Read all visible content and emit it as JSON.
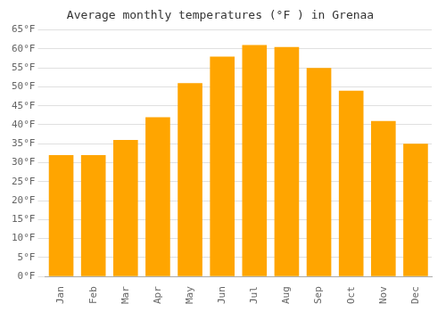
{
  "chart_data": {
    "type": "bar",
    "title": "Average monthly temperatures (°F ) in Grenaa",
    "categories": [
      "Jan",
      "Feb",
      "Mar",
      "Apr",
      "May",
      "Jun",
      "Jul",
      "Aug",
      "Sep",
      "Oct",
      "Nov",
      "Dec"
    ],
    "values": [
      32,
      32,
      36,
      42,
      51,
      58,
      61,
      60.5,
      55,
      49,
      41,
      35
    ],
    "color": "#FFA500",
    "ylim": [
      0,
      65
    ],
    "yticks": [
      {
        "value": 0,
        "label": "0°F"
      },
      {
        "value": 5,
        "label": "5°F"
      },
      {
        "value": 10,
        "label": "10°F"
      },
      {
        "value": 15,
        "label": "15°F"
      },
      {
        "value": 20,
        "label": "20°F"
      },
      {
        "value": 25,
        "label": "25°F"
      },
      {
        "value": 30,
        "label": "30°F"
      },
      {
        "value": 35,
        "label": "35°F"
      },
      {
        "value": 40,
        "label": "40°F"
      },
      {
        "value": 45,
        "label": "45°F"
      },
      {
        "value": 50,
        "label": "50°F"
      },
      {
        "value": 55,
        "label": "55°F"
      },
      {
        "value": 60,
        "label": "60°F"
      },
      {
        "value": 65,
        "label": "65°F"
      }
    ],
    "grid": true
  }
}
